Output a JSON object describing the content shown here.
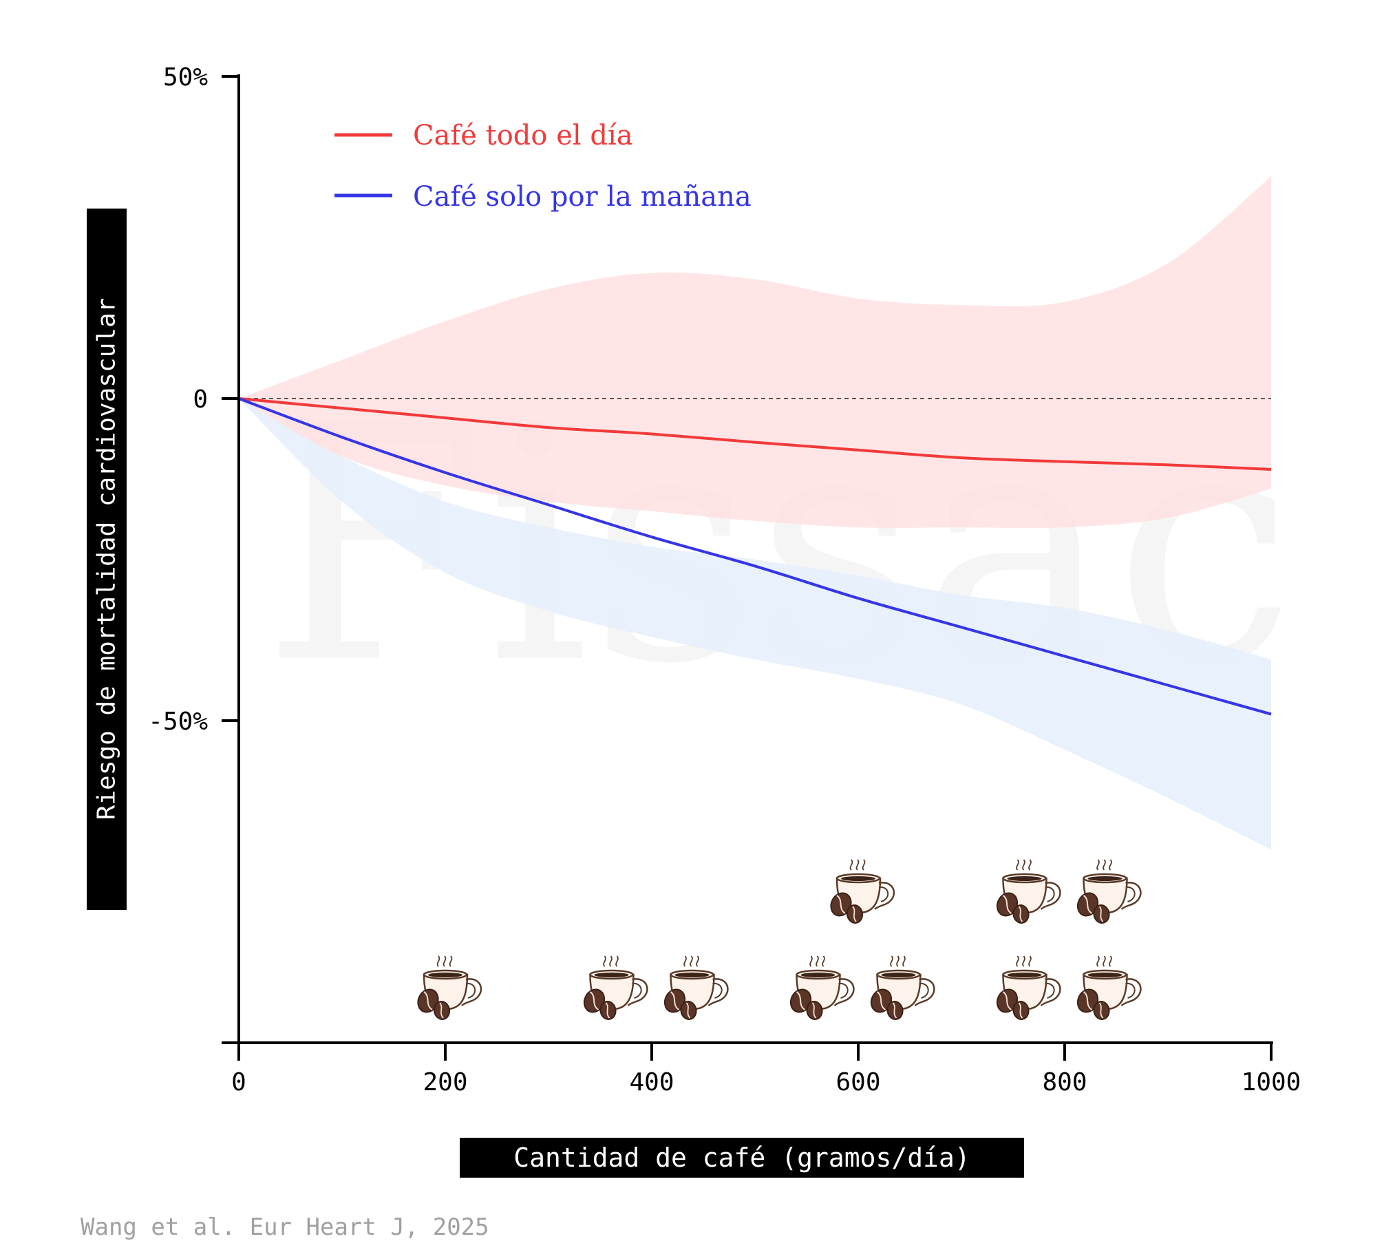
{
  "chart_data": {
    "type": "line",
    "xlabel": "Cantidad de café (gramos/día)",
    "ylabel": "Riesgo de mortalidad cardiovascular",
    "xlim": [
      0,
      1000
    ],
    "ylim": [
      -100,
      50
    ],
    "x_ticks": [
      0,
      200,
      400,
      600,
      800,
      1000
    ],
    "x_tick_labels": [
      "0",
      "200",
      "400",
      "600",
      "800",
      "1000"
    ],
    "y_ticks": [
      50,
      0,
      -50
    ],
    "y_tick_labels": [
      "50%",
      "0",
      "-50%"
    ],
    "reference_line": {
      "y": 0,
      "style": "dashed"
    },
    "legend_position": "top-left",
    "x": [
      0,
      100,
      200,
      300,
      400,
      500,
      600,
      700,
      800,
      900,
      1000
    ],
    "series": [
      {
        "name": "Café todo el día",
        "color": "#f23a3a",
        "band_color": "#ffdfe0",
        "values": [
          0,
          -1.5,
          -3,
          -4.5,
          -5.5,
          -6.8,
          -8,
          -9.2,
          -9.8,
          -10.3,
          -11
        ],
        "ci_upper": [
          0,
          6,
          12,
          17,
          19.5,
          18.5,
          15.5,
          14.5,
          15,
          21,
          34.5
        ],
        "ci_lower": [
          0,
          -9,
          -13.5,
          -16,
          -17.5,
          -19,
          -20,
          -20,
          -20,
          -18.5,
          -14
        ]
      },
      {
        "name": "Café solo por la mañana",
        "color": "#3535e6",
        "band_color": "#e5effc",
        "values": [
          0,
          -6,
          -11.5,
          -16.5,
          -21.5,
          -26,
          -31,
          -35.5,
          -40,
          -44.5,
          -49
        ],
        "ci_upper": [
          0,
          -9,
          -16,
          -20,
          -23,
          -25,
          -27.5,
          -30.5,
          -32.5,
          -36,
          -40.5
        ],
        "ci_lower": [
          0,
          -16,
          -27,
          -33,
          -37,
          -40.5,
          -43.5,
          -47.5,
          -54.5,
          -62,
          -70
        ]
      }
    ],
    "cup_groups": [
      {
        "x": 200,
        "count": 1
      },
      {
        "x": 400,
        "count": 2
      },
      {
        "x": 600,
        "count": 3
      },
      {
        "x": 800,
        "count": 4
      }
    ],
    "cup_icon": "coffee-cup-with-beans-icon",
    "watermark": "Fissac",
    "source": "Wang et al. Eur Heart J, 2025"
  }
}
